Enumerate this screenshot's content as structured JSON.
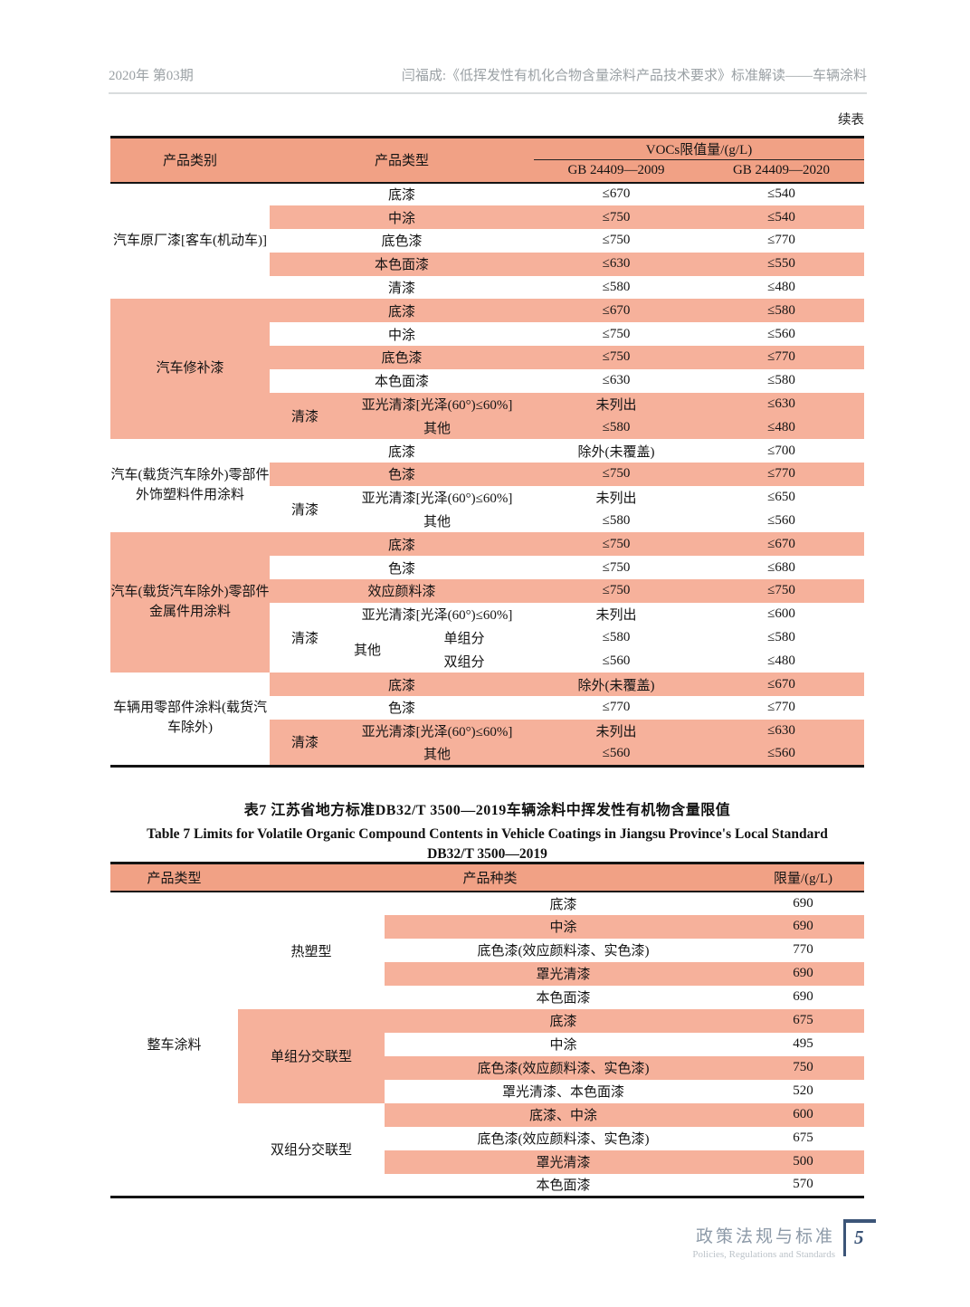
{
  "colors": {
    "table_header_bg": "#f1a185",
    "row_stripe_bg": "#f6b19b",
    "footer_accent": "#3c5578"
  },
  "page_header": {
    "issue": "2020年  第03期",
    "article": "闫福成:《低挥发性有机化合物含量涂料产品技术要求》标准解读——车辆涂料"
  },
  "continued_label": "续表",
  "table1": {
    "header": {
      "category": "产品类别",
      "type": "产品类型",
      "vocs": "VOCs限值量/(g/L)",
      "gb2009": "GB 24409—2009",
      "gb2020": "GB 24409—2020"
    },
    "rows": [
      [
        {
          "t": "汽车原厂漆[客车(机动车)]",
          "rs": 5,
          "kind": "label"
        },
        {
          "t": "底漆",
          "cs": 3,
          "kind": "type"
        },
        {
          "t": "≤670"
        },
        {
          "t": "≤540"
        }
      ],
      [
        {
          "t": "中涂",
          "cs": 3,
          "kind": "type",
          "shaded": true
        },
        {
          "t": "≤750",
          "shaded": true
        },
        {
          "t": "≤540",
          "shaded": true
        }
      ],
      [
        {
          "t": "底色漆",
          "cs": 3,
          "kind": "type"
        },
        {
          "t": "≤750"
        },
        {
          "t": "≤770"
        }
      ],
      [
        {
          "t": "本色面漆",
          "cs": 3,
          "kind": "type",
          "shaded": true
        },
        {
          "t": "≤630",
          "shaded": true
        },
        {
          "t": "≤550",
          "shaded": true
        }
      ],
      [
        {
          "t": "清漆",
          "cs": 3,
          "kind": "type"
        },
        {
          "t": "≤580"
        },
        {
          "t": "≤480"
        }
      ],
      [
        {
          "t": "汽车修补漆",
          "rs": 6,
          "kind": "label",
          "shaded": true
        },
        {
          "t": "底漆",
          "cs": 3,
          "kind": "type",
          "shaded": true
        },
        {
          "t": "≤670",
          "shaded": true
        },
        {
          "t": "≤580",
          "shaded": true
        }
      ],
      [
        {
          "t": "中涂",
          "cs": 3,
          "kind": "type"
        },
        {
          "t": "≤750"
        },
        {
          "t": "≤560"
        }
      ],
      [
        {
          "t": "底色漆",
          "cs": 3,
          "kind": "type",
          "shaded": true
        },
        {
          "t": "≤750",
          "shaded": true
        },
        {
          "t": "≤770",
          "shaded": true
        }
      ],
      [
        {
          "t": "本色面漆",
          "cs": 3,
          "kind": "type"
        },
        {
          "t": "≤630"
        },
        {
          "t": "≤580"
        }
      ],
      [
        {
          "t": "清漆",
          "rs": 2,
          "kind": "type",
          "shaded": true
        },
        {
          "t": "亚光清漆[光泽(60°)≤60%]",
          "cs": 2,
          "kind": "sub",
          "shaded": true
        },
        {
          "t": "未列出",
          "shaded": true
        },
        {
          "t": "≤630",
          "shaded": true
        }
      ],
      [
        {
          "t": "其他",
          "cs": 2,
          "kind": "sub",
          "shaded": true
        },
        {
          "t": "≤580",
          "shaded": true
        },
        {
          "t": "≤480",
          "shaded": true
        }
      ],
      [
        {
          "t": "汽车(载货汽车除外)零部件外饰塑料件用涂料",
          "rs": 4,
          "kind": "label"
        },
        {
          "t": "底漆",
          "cs": 3,
          "kind": "type"
        },
        {
          "t": "除外(未覆盖)"
        },
        {
          "t": "≤700"
        }
      ],
      [
        {
          "t": "色漆",
          "cs": 3,
          "kind": "type",
          "shaded": true
        },
        {
          "t": "≤750",
          "shaded": true
        },
        {
          "t": "≤770",
          "shaded": true
        }
      ],
      [
        {
          "t": "清漆",
          "rs": 2,
          "kind": "type"
        },
        {
          "t": "亚光清漆[光泽(60°)≤60%]",
          "cs": 2,
          "kind": "sub"
        },
        {
          "t": "未列出"
        },
        {
          "t": "≤650"
        }
      ],
      [
        {
          "t": "其他",
          "cs": 2,
          "kind": "sub"
        },
        {
          "t": "≤580"
        },
        {
          "t": "≤560"
        }
      ],
      [
        {
          "t": "汽车(载货汽车除外)零部件金属件用涂料",
          "rs": 6,
          "kind": "label",
          "shaded": true
        },
        {
          "t": "底漆",
          "cs": 3,
          "kind": "type",
          "shaded": true
        },
        {
          "t": "≤750",
          "shaded": true
        },
        {
          "t": "≤670",
          "shaded": true
        }
      ],
      [
        {
          "t": "色漆",
          "cs": 3,
          "kind": "type"
        },
        {
          "t": "≤750"
        },
        {
          "t": "≤680"
        }
      ],
      [
        {
          "t": "效应颜料漆",
          "cs": 3,
          "kind": "type",
          "shaded": true
        },
        {
          "t": "≤750",
          "shaded": true
        },
        {
          "t": "≤750",
          "shaded": true
        }
      ],
      [
        {
          "t": "清漆",
          "rs": 3,
          "kind": "type"
        },
        {
          "t": "亚光清漆[光泽(60°)≤60%]",
          "cs": 2,
          "kind": "sub"
        },
        {
          "t": "未列出"
        },
        {
          "t": "≤600"
        }
      ],
      [
        {
          "t": "其他",
          "rs": 2,
          "kind": "sub"
        },
        {
          "t": "单组分",
          "kind": "center"
        },
        {
          "t": "≤580"
        },
        {
          "t": "≤580"
        }
      ],
      [
        {
          "t": "双组分",
          "kind": "center"
        },
        {
          "t": "≤560"
        },
        {
          "t": "≤480"
        }
      ],
      [
        {
          "t": "车辆用零部件涂料(载货汽车除外)",
          "rs": 4,
          "kind": "label"
        },
        {
          "t": "底漆",
          "cs": 3,
          "kind": "type",
          "shaded": true
        },
        {
          "t": "除外(未覆盖)",
          "shaded": true
        },
        {
          "t": "≤670",
          "shaded": true
        }
      ],
      [
        {
          "t": "色漆",
          "cs": 3,
          "kind": "type"
        },
        {
          "t": "≤770"
        },
        {
          "t": "≤770"
        }
      ],
      [
        {
          "t": "清漆",
          "rs": 2,
          "kind": "type",
          "shaded": true
        },
        {
          "t": "亚光清漆[光泽(60°)≤60%]",
          "cs": 2,
          "kind": "sub",
          "shaded": true
        },
        {
          "t": "未列出",
          "shaded": true
        },
        {
          "t": "≤630",
          "shaded": true
        }
      ],
      [
        {
          "t": "其他",
          "cs": 2,
          "kind": "sub",
          "shaded": true
        },
        {
          "t": "≤560",
          "shaded": true
        },
        {
          "t": "≤560",
          "shaded": true
        }
      ]
    ]
  },
  "table7_title": {
    "zh": "表7  江苏省地方标准DB32/T 3500—2019车辆涂料中挥发性有机物含量限值",
    "en1": "Table 7   Limits for Volatile Organic Compound Contents in Vehicle Coatings in Jiangsu Province's Local Standard",
    "en2": "DB32/T 3500—2019"
  },
  "table7": {
    "header": {
      "col1": "产品类型",
      "col2": "产品种类",
      "col3": "限量/(g/L)"
    },
    "rows": [
      [
        {
          "t": "整车涂料",
          "rs": 13,
          "kind": "center"
        },
        {
          "t": "热塑型",
          "rs": 5,
          "kind": "center"
        },
        {
          "t": "底漆",
          "kind": "type"
        },
        {
          "t": "690"
        }
      ],
      [
        {
          "t": "中涂",
          "kind": "type",
          "shaded": true
        },
        {
          "t": "690",
          "shaded": true
        }
      ],
      [
        {
          "t": "底色漆(效应颜料漆、实色漆)",
          "kind": "type"
        },
        {
          "t": "770"
        }
      ],
      [
        {
          "t": "罩光清漆",
          "kind": "type",
          "shaded": true
        },
        {
          "t": "690",
          "shaded": true
        }
      ],
      [
        {
          "t": "本色面漆",
          "kind": "type"
        },
        {
          "t": "690"
        }
      ],
      [
        {
          "t": "单组分交联型",
          "rs": 4,
          "kind": "center",
          "shaded": true
        },
        {
          "t": "底漆",
          "kind": "type",
          "shaded": true
        },
        {
          "t": "675",
          "shaded": true
        }
      ],
      [
        {
          "t": "中涂",
          "kind": "type"
        },
        {
          "t": "495"
        }
      ],
      [
        {
          "t": "底色漆(效应颜料漆、实色漆)",
          "kind": "type",
          "shaded": true
        },
        {
          "t": "750",
          "shaded": true
        }
      ],
      [
        {
          "t": "罩光清漆、本色面漆",
          "kind": "type"
        },
        {
          "t": "520"
        }
      ],
      [
        {
          "t": "双组分交联型",
          "rs": 4,
          "kind": "center"
        },
        {
          "t": "底漆、中涂",
          "kind": "type",
          "shaded": true
        },
        {
          "t": "600",
          "shaded": true
        }
      ],
      [
        {
          "t": "底色漆(效应颜料漆、实色漆)",
          "kind": "type"
        },
        {
          "t": "675"
        }
      ],
      [
        {
          "t": "罩光清漆",
          "kind": "type",
          "shaded": true
        },
        {
          "t": "500",
          "shaded": true
        }
      ],
      [
        {
          "t": "本色面漆",
          "kind": "type"
        },
        {
          "t": "570"
        }
      ]
    ]
  },
  "footer": {
    "zh": "政策法规与标准",
    "en": "Policies, Regulations and Standards",
    "page": "5"
  }
}
